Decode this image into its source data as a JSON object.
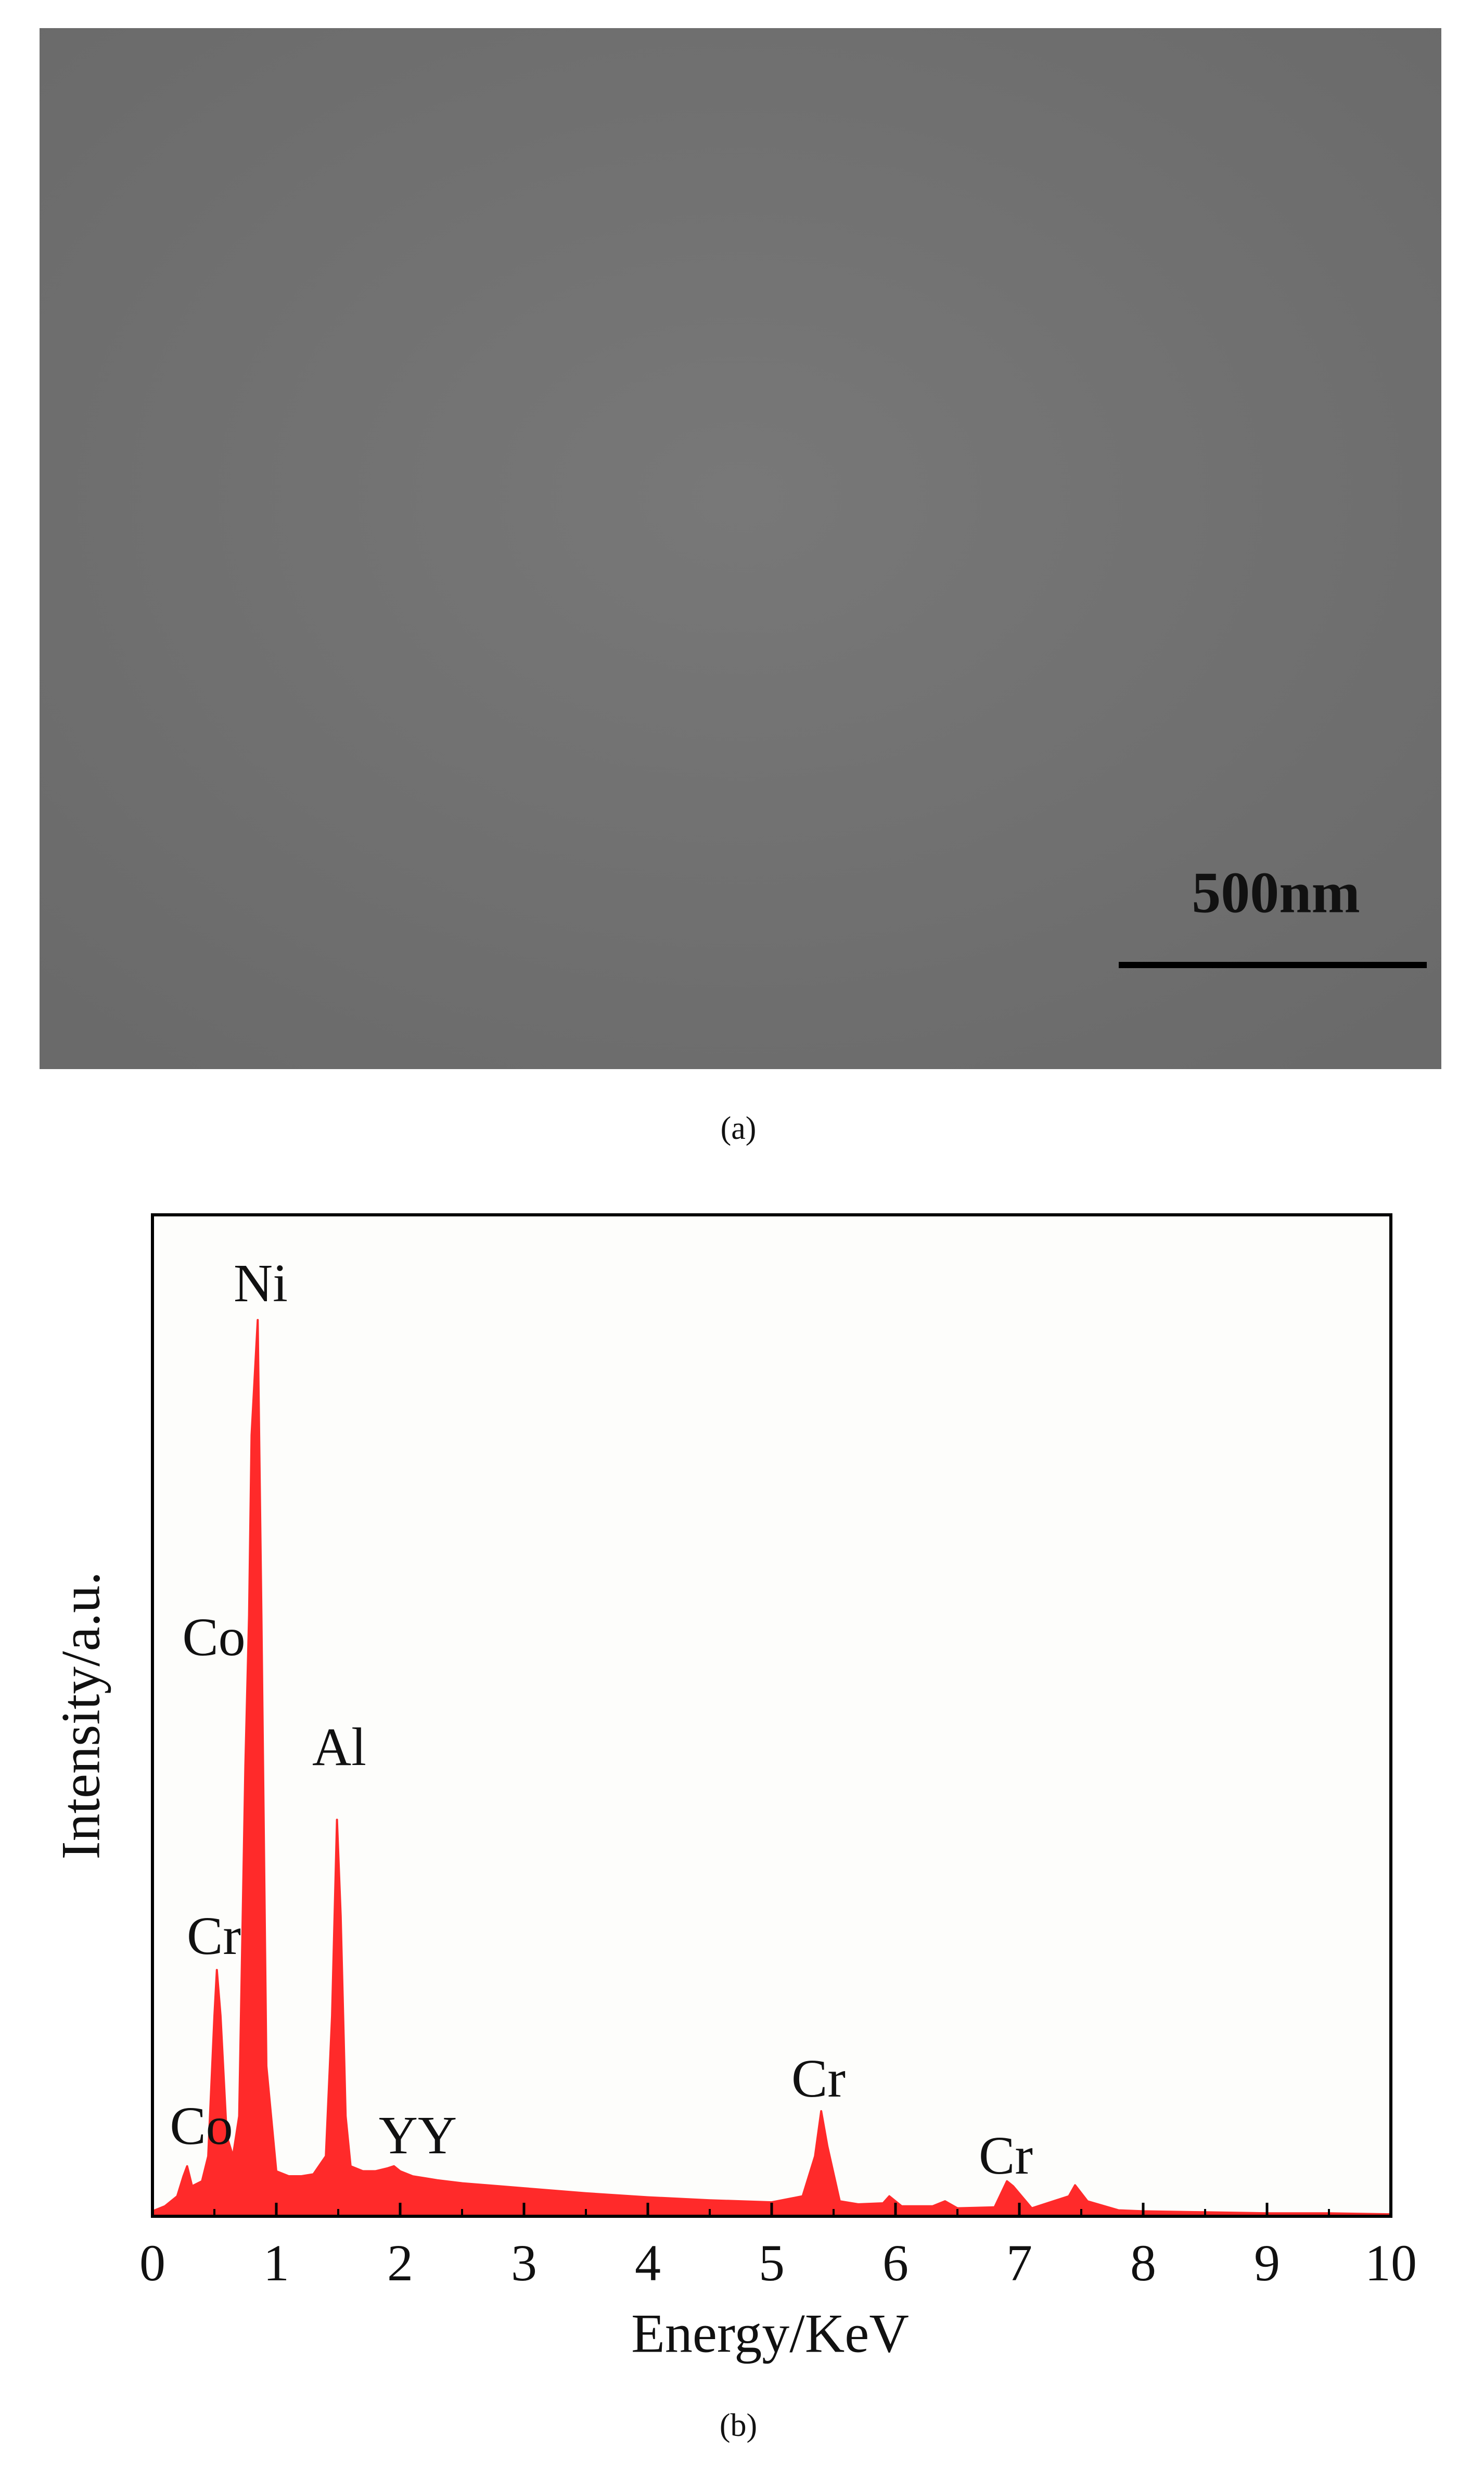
{
  "figure_a": {
    "scale_bar": "500nm",
    "caption": "(a)"
  },
  "chart_data": {
    "type": "area",
    "xlabel": "Energy/KeV",
    "ylabel": "Intensity/a.u.",
    "caption": "(b)",
    "color": "#ff2a2a",
    "xlim": [
      0,
      10
    ],
    "xticks": [
      0,
      1,
      2,
      3,
      4,
      5,
      6,
      7,
      8,
      9,
      10
    ],
    "xminorticks": [
      0.5,
      1.5,
      2.5,
      3.5,
      4.5,
      5.5,
      6.5,
      7.5,
      8.5,
      9.5
    ],
    "ylim": [
      0,
      100
    ],
    "annotations": [
      "Ni",
      "Co",
      "Al",
      "Cr",
      "Co",
      "YY",
      "Cr",
      "Cr"
    ],
    "x": [
      0,
      0.1,
      0.2,
      0.25,
      0.28,
      0.32,
      0.4,
      0.45,
      0.5,
      0.52,
      0.55,
      0.6,
      0.65,
      0.7,
      0.75,
      0.78,
      0.8,
      0.85,
      0.88,
      0.92,
      1.0,
      1.1,
      1.2,
      1.3,
      1.4,
      1.45,
      1.49,
      1.52,
      1.56,
      1.6,
      1.7,
      1.8,
      1.9,
      1.95,
      2.0,
      2.1,
      2.2,
      2.3,
      2.5,
      2.8,
      3.0,
      3.5,
      4.0,
      4.5,
      5.0,
      5.25,
      5.35,
      5.4,
      5.45,
      5.55,
      5.7,
      5.9,
      5.95,
      6.05,
      6.3,
      6.4,
      6.5,
      6.8,
      6.9,
      6.95,
      7.1,
      7.4,
      7.45,
      7.55,
      7.8,
      8.0,
      8.5,
      9.0,
      9.5,
      10.0
    ],
    "values": [
      0.5,
      1,
      2,
      4,
      5,
      3,
      3.5,
      6,
      20,
      24.6,
      20,
      8,
      6,
      10,
      45,
      60,
      78,
      89.5,
      60,
      15,
      4.5,
      4,
      4,
      4.2,
      6,
      20,
      39.6,
      30,
      10,
      5,
      4.5,
      4.5,
      4.8,
      5,
      4.5,
      4,
      3.8,
      3.6,
      3.3,
      3,
      2.8,
      2.3,
      1.9,
      1.6,
      1.4,
      2,
      6,
      10.5,
      7,
      1.5,
      1.2,
      1.3,
      2,
      1,
      1,
      1.5,
      0.8,
      0.9,
      3.5,
      3,
      0.8,
      2,
      3.1,
      1.5,
      0.6,
      0.5,
      0.4,
      0.3,
      0.3,
      0.2
    ]
  }
}
